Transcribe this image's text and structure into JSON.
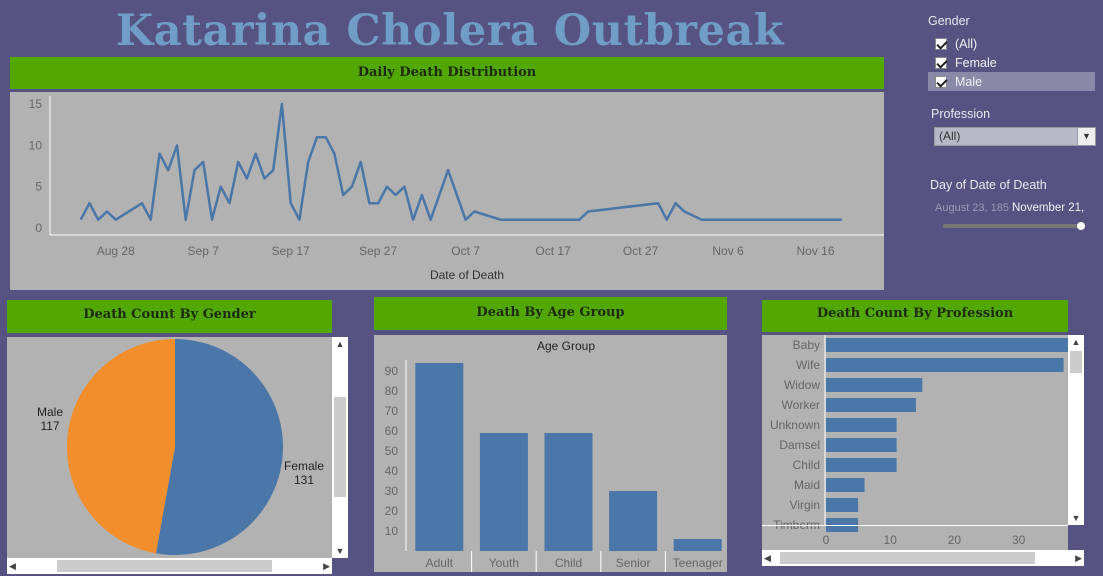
{
  "title": "Katarina Cholera Outbreak",
  "filters": {
    "gender": {
      "title": "Gender",
      "options": [
        "(All)",
        "Female",
        "Male"
      ],
      "highlighted": "Male"
    },
    "profession": {
      "title": "Profession",
      "selected": "(All)"
    },
    "date": {
      "title": "Day of Date of Death",
      "from": "August 23, 185",
      "to": "November 21,"
    }
  },
  "colors": {
    "accent": "#4a76a8",
    "header": "#52a700",
    "female": "#4a76a8",
    "male": "#f28e2b",
    "background": "#565382",
    "panel": "#b2b2b2"
  },
  "chart_data": [
    {
      "id": "daily",
      "type": "line",
      "title": "Daily Death Distribution",
      "xlabel": "Date of Death",
      "ylabel": "",
      "x_ticks": [
        "Aug 28",
        "Sep 7",
        "Sep 17",
        "Sep 27",
        "Oct 7",
        "Oct 17",
        "Oct 27",
        "Nov 6",
        "Nov 16"
      ],
      "y_ticks": [
        0,
        5,
        10,
        15
      ],
      "xlim": [
        "1854-08-23",
        "1854-11-22"
      ],
      "ylim": [
        0,
        15.5
      ],
      "x": [
        "1854-08-24",
        "1854-08-25",
        "1854-08-26",
        "1854-08-27",
        "1854-08-28",
        "1854-08-31",
        "1854-09-01",
        "1854-09-02",
        "1854-09-03",
        "1854-09-04",
        "1854-09-05",
        "1854-09-06",
        "1854-09-07",
        "1854-09-08",
        "1854-09-09",
        "1854-09-10",
        "1854-09-11",
        "1854-09-12",
        "1854-09-13",
        "1854-09-14",
        "1854-09-15",
        "1854-09-16",
        "1854-09-17",
        "1854-09-18",
        "1854-09-19",
        "1854-09-20",
        "1854-09-21",
        "1854-09-22",
        "1854-09-23",
        "1854-09-24",
        "1854-09-25",
        "1854-09-26",
        "1854-09-27",
        "1854-09-28",
        "1854-09-29",
        "1854-09-30",
        "1854-10-01",
        "1854-10-02",
        "1854-10-03",
        "1854-10-05",
        "1854-10-07",
        "1854-10-08",
        "1854-10-11",
        "1854-10-13",
        "1854-10-20",
        "1854-10-21",
        "1854-10-29",
        "1854-10-30",
        "1854-10-31",
        "1854-11-01",
        "1854-11-03",
        "1854-11-19"
      ],
      "y": [
        1,
        3,
        1,
        2,
        1,
        3,
        1,
        9,
        7,
        10,
        1,
        7,
        8,
        1,
        5,
        3,
        8,
        6,
        9,
        6,
        7,
        15,
        3,
        1,
        8,
        11,
        11,
        9,
        4,
        5,
        8,
        3,
        3,
        5,
        4,
        5,
        1,
        4,
        1,
        7,
        1,
        2,
        1,
        1,
        1,
        2,
        3,
        1,
        3,
        2,
        1,
        1
      ]
    },
    {
      "id": "gender",
      "type": "pie",
      "title": "Death Count By Gender",
      "labels": [
        "Female",
        "Male"
      ],
      "values": [
        131,
        117
      ]
    },
    {
      "id": "age",
      "type": "bar",
      "title": "Death By Age Group",
      "subtitle": "Age Group",
      "categories": [
        "Adult",
        "Youth",
        "Child",
        "Senior",
        "Teenager"
      ],
      "values": [
        94,
        59,
        59,
        30,
        6
      ],
      "y_ticks": [
        10,
        20,
        30,
        40,
        50,
        60,
        70,
        80,
        90
      ],
      "ylim": [
        0,
        100
      ]
    },
    {
      "id": "profession",
      "type": "bar",
      "orientation": "horizontal",
      "title": "Death Count By Profession",
      "categories": [
        "Baby",
        "Wife",
        "Widow",
        "Worker",
        "Unknown",
        "Damsel",
        "Child",
        "Maid",
        "Virgin",
        "Timberm"
      ],
      "values": [
        42,
        37,
        15,
        14,
        11,
        11,
        11,
        6,
        5,
        5
      ],
      "x_ticks": [
        0,
        10,
        20,
        30
      ],
      "xlim": [
        0,
        38
      ]
    }
  ]
}
